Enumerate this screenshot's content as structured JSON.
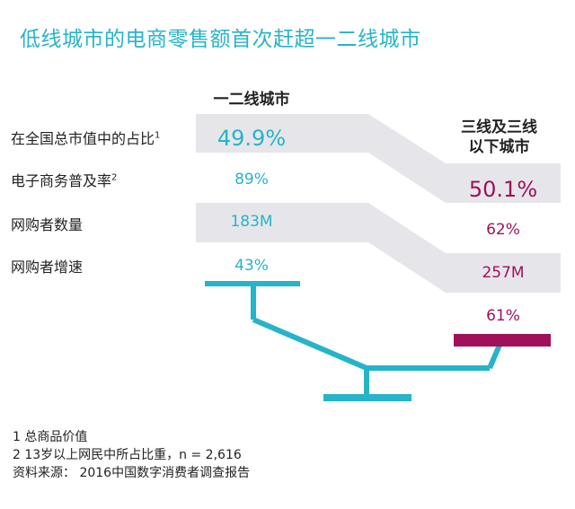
{
  "title": "低线城市的电商零售额首次赶超一二线城市",
  "chart_data": {
    "type": "table",
    "columns": [
      {
        "name": "一二线城市",
        "color": "#25b4c9"
      },
      {
        "name_line1": "三线及三线",
        "name_line2": "以下城市",
        "color": "#a0115a"
      }
    ],
    "rows": [
      {
        "label": "在全国总市值中的占比",
        "sup": "1",
        "tier12": "49.9%",
        "tier3plus": "50.1%"
      },
      {
        "label": "电子商务普及率",
        "sup": "2",
        "tier12": "89%",
        "tier3plus": "62%"
      },
      {
        "label": "网购者数量",
        "sup": "",
        "tier12": "183M",
        "tier3plus": "257M"
      },
      {
        "label": "网购者增速",
        "sup": "",
        "tier12": "43%",
        "tier3plus": "61%"
      }
    ],
    "balance": {
      "left_weight": 49.9,
      "right_weight": 50.1,
      "tilt": "right-down"
    }
  },
  "notes": [
    "1 总商品价值",
    "2 13岁以上网民中所占比重，n = 2,616",
    "资料来源：  2016中国数字消费者调查报告"
  ],
  "colors": {
    "accent": "#25b4c9",
    "magenta": "#a0115a",
    "band": "#e6e6ea"
  }
}
